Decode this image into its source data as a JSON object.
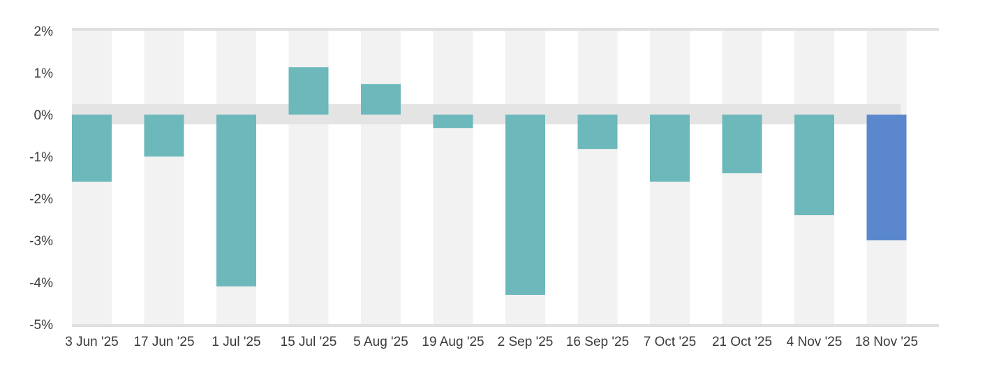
{
  "chart_data": {
    "type": "bar",
    "categories": [
      "3 Jun '25",
      "17 Jun '25",
      "1 Jul '25",
      "15 Jul '25",
      "5 Aug '25",
      "19 Aug '25",
      "2 Sep '25",
      "16 Sep '25",
      "7 Oct '25",
      "21 Oct '25",
      "4 Nov '25",
      "18 Nov '25"
    ],
    "values": [
      -1.6,
      -1.0,
      -4.1,
      1.13,
      0.73,
      -0.32,
      -4.3,
      -0.82,
      -1.6,
      -1.4,
      -2.4,
      -3.0
    ],
    "y_ticks": [
      "2%",
      "1%",
      "0%",
      "-1%",
      "-2%",
      "-3%",
      "-4%",
      "-5%"
    ],
    "y_tick_values": [
      2,
      1,
      0,
      -1,
      -2,
      -3,
      -4,
      -5
    ],
    "ylim": [
      -5,
      2
    ],
    "title": "",
    "xlabel": "",
    "ylabel": "",
    "grid": false,
    "legend": "none",
    "colors": {
      "bar": "#6db8ba",
      "highlight_bar": "#5b88cc",
      "band": "#f2f2f2",
      "zero_band": "#e4e4e4",
      "axis": "#e0e0e0"
    },
    "highlight_index": 11
  }
}
